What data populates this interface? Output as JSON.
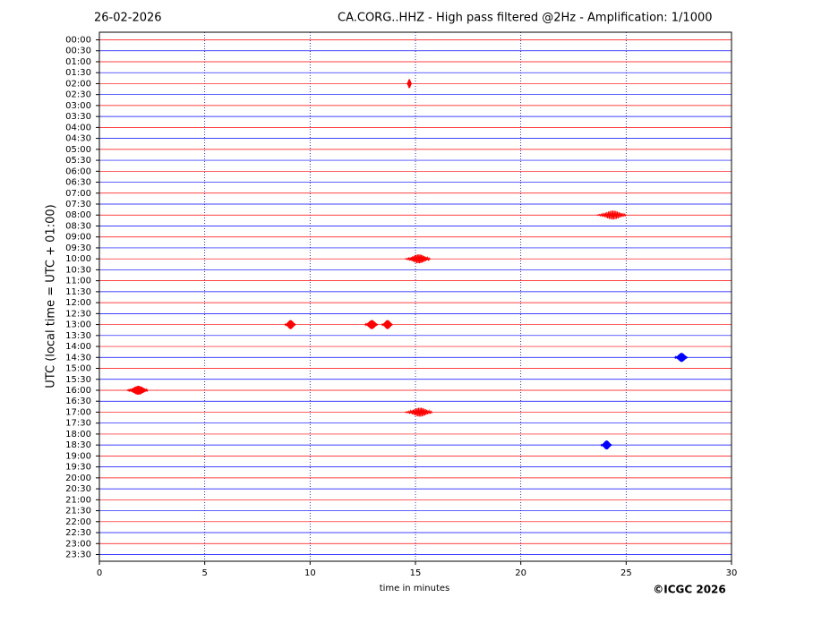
{
  "chart_data": {
    "type": "helicorder",
    "date": "26-02-2026",
    "title": "CA.CORG..HHZ - High pass filtered @2Hz - Amplification: 1/1000",
    "ylabel": "UTC (local time = UTC + 01:00)",
    "xlabel": "time in minutes",
    "copyright": "©ICGC 2026",
    "categories": [
      "00:00",
      "00:30",
      "01:00",
      "01:30",
      "02:00",
      "02:30",
      "03:00",
      "03:30",
      "04:00",
      "04:30",
      "05:00",
      "05:30",
      "06:00",
      "06:30",
      "07:00",
      "07:30",
      "08:00",
      "08:30",
      "09:00",
      "09:30",
      "10:00",
      "10:30",
      "11:00",
      "11:30",
      "12:00",
      "12:30",
      "13:00",
      "13:30",
      "14:00",
      "14:30",
      "15:00",
      "15:30",
      "16:00",
      "16:30",
      "17:00",
      "17:30",
      "18:00",
      "18:30",
      "19:00",
      "19:30",
      "20:00",
      "20:30",
      "21:00",
      "21:30",
      "22:00",
      "22:30",
      "23:00",
      "23:30"
    ],
    "colors": [
      "#ff0000",
      "#0000ff"
    ],
    "xlim": [
      0,
      30
    ],
    "xticks": [
      0,
      5,
      10,
      15,
      20,
      25,
      30
    ],
    "grid": true,
    "events": [
      {
        "time": "02:00",
        "start": 14.6,
        "end": 14.8
      },
      {
        "time": "08:00",
        "start": 23.6,
        "end": 25.0
      },
      {
        "time": "10:00",
        "start": 14.5,
        "end": 15.7
      },
      {
        "time": "13:00",
        "start": 8.8,
        "end": 9.3
      },
      {
        "time": "13:00",
        "start": 12.6,
        "end": 13.2
      },
      {
        "time": "13:00",
        "start": 13.4,
        "end": 13.9
      },
      {
        "time": "14:30",
        "start": 27.3,
        "end": 27.9
      },
      {
        "time": "16:00",
        "start": 1.3,
        "end": 2.3
      },
      {
        "time": "17:00",
        "start": 14.5,
        "end": 15.8
      },
      {
        "time": "18:30",
        "start": 23.8,
        "end": 24.3
      }
    ]
  }
}
